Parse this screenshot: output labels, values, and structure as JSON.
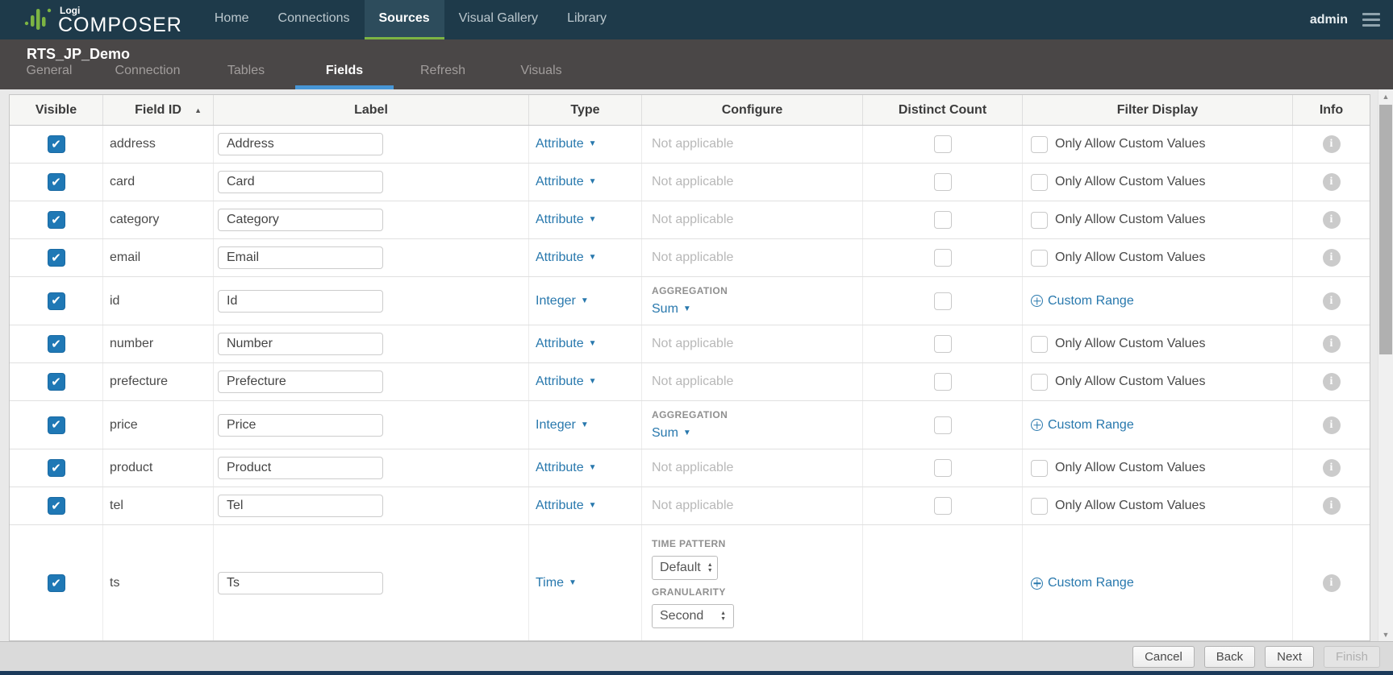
{
  "navbar": {
    "logo": {
      "top": "Logi",
      "main": "COMPOSER"
    },
    "items": [
      {
        "label": "Home",
        "active": false
      },
      {
        "label": "Connections",
        "active": false
      },
      {
        "label": "Sources",
        "active": true
      },
      {
        "label": "Visual Gallery",
        "active": false
      },
      {
        "label": "Library",
        "active": false
      }
    ],
    "user": "admin"
  },
  "subheader": {
    "title": "RTS_JP_Demo",
    "tabs": [
      {
        "label": "General",
        "active": false
      },
      {
        "label": "Connection",
        "active": false
      },
      {
        "label": "Tables",
        "active": false
      },
      {
        "label": "Fields",
        "active": true
      },
      {
        "label": "Refresh",
        "active": false
      },
      {
        "label": "Visuals",
        "active": false
      }
    ]
  },
  "table": {
    "columns": [
      "Visible",
      "Field ID",
      "Label",
      "Type",
      "Configure",
      "Distinct Count",
      "Filter Display",
      "Info"
    ],
    "sort": {
      "column": "Field ID",
      "direction": "ascending"
    },
    "labels": {
      "not_applicable": "Not applicable",
      "aggregation": "AGGREGATION",
      "time_pattern": "TIME PATTERN",
      "granularity": "GRANULARITY",
      "only_allow_custom_values": "Only Allow Custom Values",
      "custom_range": "Custom Range"
    },
    "rows": [
      {
        "field_id": "address",
        "label": "Address",
        "type": "Attribute",
        "configure": "not_applicable",
        "visible": true,
        "distinct_checkbox": true
      },
      {
        "field_id": "card",
        "label": "Card",
        "type": "Attribute",
        "configure": "not_applicable",
        "visible": true,
        "distinct_checkbox": true
      },
      {
        "field_id": "category",
        "label": "Category",
        "type": "Attribute",
        "configure": "not_applicable",
        "visible": true,
        "distinct_checkbox": true
      },
      {
        "field_id": "email",
        "label": "Email",
        "type": "Attribute",
        "configure": "not_applicable",
        "visible": true,
        "distinct_checkbox": true
      },
      {
        "field_id": "id",
        "label": "Id",
        "type": "Integer",
        "configure": "aggregation",
        "aggregation": "Sum",
        "visible": true,
        "distinct_checkbox": true
      },
      {
        "field_id": "number",
        "label": "Number",
        "type": "Attribute",
        "configure": "not_applicable",
        "visible": true,
        "distinct_checkbox": true
      },
      {
        "field_id": "prefecture",
        "label": "Prefecture",
        "type": "Attribute",
        "configure": "not_applicable",
        "visible": true,
        "distinct_checkbox": true
      },
      {
        "field_id": "price",
        "label": "Price",
        "type": "Integer",
        "configure": "aggregation",
        "aggregation": "Sum",
        "visible": true,
        "distinct_checkbox": true
      },
      {
        "field_id": "product",
        "label": "Product",
        "type": "Attribute",
        "configure": "not_applicable",
        "visible": true,
        "distinct_checkbox": true
      },
      {
        "field_id": "tel",
        "label": "Tel",
        "type": "Attribute",
        "configure": "not_applicable",
        "visible": true,
        "distinct_checkbox": true
      },
      {
        "field_id": "ts",
        "label": "Ts",
        "type": "Time",
        "configure": "time",
        "time_pattern": "Default",
        "granularity": "Second",
        "visible": true,
        "distinct_checkbox": false
      }
    ]
  },
  "footer": {
    "buttons": [
      {
        "label": "Cancel",
        "enabled": true
      },
      {
        "label": "Back",
        "enabled": true
      },
      {
        "label": "Next",
        "enabled": true
      },
      {
        "label": "Finish",
        "enabled": false
      }
    ]
  },
  "colors": {
    "navbar_bg": "#1e3a4a",
    "nav_active_bg": "#2d4c5c",
    "brand_green": "#7cb443",
    "subheader_bg": "#4a4747",
    "tab_underline": "#4796d6",
    "link_blue": "#2878ad",
    "checkbox_blue": "#1f78b5",
    "page_bg": "#e9e9e9"
  }
}
